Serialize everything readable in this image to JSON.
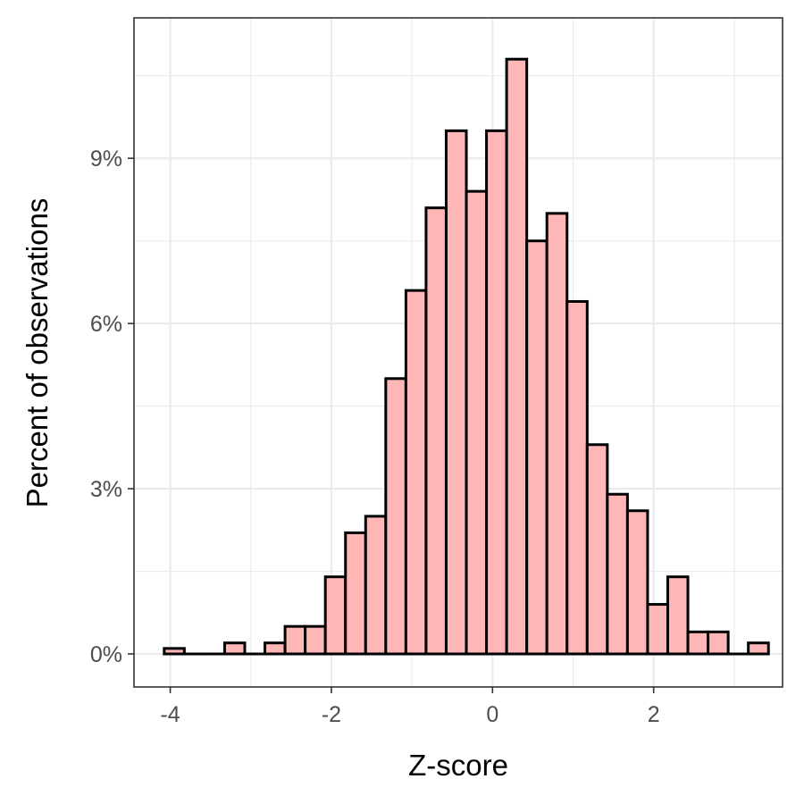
{
  "chart_data": {
    "type": "bar",
    "subtype": "histogram",
    "title": "",
    "xlabel": "Z-score",
    "ylabel": "Percent of observations",
    "xlim": [
      -4.45,
      3.6
    ],
    "ylim": [
      -0.6,
      11.55
    ],
    "x_ticks": [
      -4,
      -2,
      0,
      2
    ],
    "x_tick_labels": [
      "-4",
      "-2",
      "0",
      "2"
    ],
    "y_ticks": [
      0,
      3,
      6,
      9
    ],
    "y_tick_labels": [
      "0%",
      "3%",
      "6%",
      "9%"
    ],
    "bin_width": 0.25,
    "bin_centers": [
      -3.95,
      -3.7,
      -3.45,
      -3.2,
      -2.95,
      -2.7,
      -2.45,
      -2.2,
      -1.95,
      -1.7,
      -1.45,
      -1.2,
      -0.95,
      -0.7,
      -0.45,
      -0.2,
      0.05,
      0.3,
      0.55,
      0.8,
      1.05,
      1.3,
      1.55,
      1.8,
      2.05,
      2.3,
      2.55,
      2.8,
      3.05,
      3.3
    ],
    "values": [
      0.1,
      0.0,
      0.0,
      0.2,
      0.0,
      0.2,
      0.5,
      0.5,
      1.4,
      2.2,
      2.5,
      5.0,
      6.6,
      8.1,
      9.5,
      8.4,
      9.5,
      10.8,
      7.5,
      8.0,
      6.4,
      3.8,
      2.9,
      2.6,
      0.9,
      1.4,
      0.4,
      0.4,
      0.0,
      0.2
    ],
    "grid": true,
    "colors": {
      "bar_fill": "#ffb6b6",
      "bar_outline": "#000000",
      "grid": "#ebebeb",
      "panel_border": "#333333",
      "tick_label": "#4d4d4d"
    }
  }
}
